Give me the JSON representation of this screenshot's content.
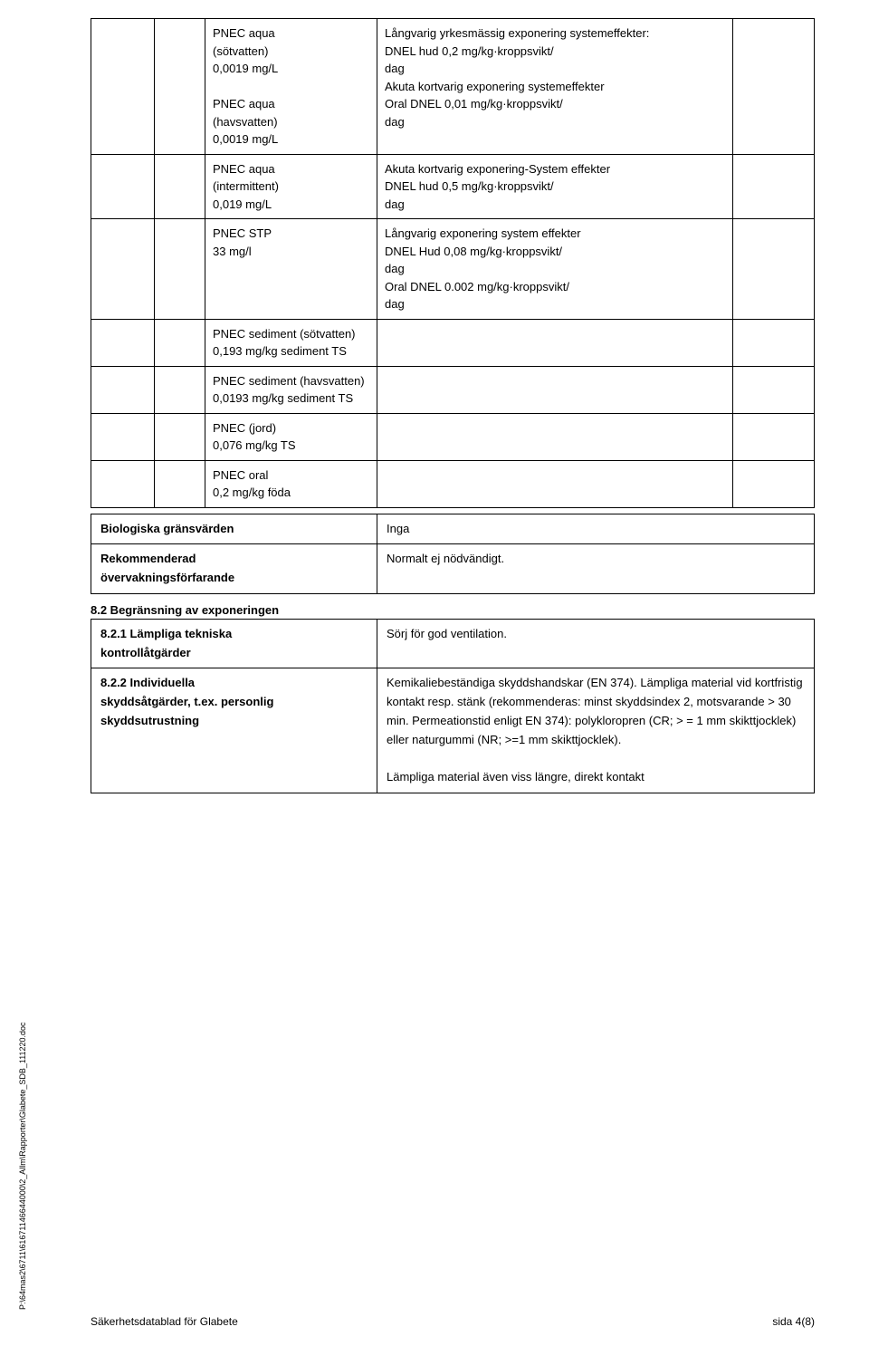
{
  "rows": [
    {
      "c": "PNEC aqua\n(sötvatten)\n0,0019 mg/L\n\nPNEC aqua\n(havsvatten)\n0,0019 mg/L",
      "d": "Långvarig yrkesmässig exponering systemeffekter:\nDNEL hud 0,2 mg/kg·kroppsvikt/\ndag\nAkuta kortvarig exponering systemeffekter\nOral DNEL 0,01 mg/kg·kroppsvikt/\ndag"
    },
    {
      "c": "PNEC aqua\n(intermittent)\n0,019 mg/L",
      "d": "Akuta kortvarig exponering-System effekter\nDNEL hud 0,5 mg/kg·kroppsvikt/\ndag"
    },
    {
      "c": "PNEC STP\n33 mg/l",
      "d": "Långvarig exponering system effekter\nDNEL Hud 0,08 mg/kg·kroppsvikt/\ndag\nOral DNEL 0.002 mg/kg·kroppsvikt/\ndag"
    },
    {
      "c": "PNEC sediment (sötvatten)\n0,193 mg/kg sediment TS",
      "d": ""
    },
    {
      "c": "PNEC sediment (havsvatten)\n0,0193 mg/kg sediment TS",
      "d": ""
    },
    {
      "c": "PNEC (jord)\n0,076 mg/kg TS",
      "d": ""
    },
    {
      "c": "PNEC oral\n0,2 mg/kg föda",
      "d": ""
    }
  ],
  "bio": {
    "l1": "Biologiska gränsvärden",
    "r1": "Inga",
    "l2a": "Rekommenderad",
    "l2b": "övervakningsförfarande",
    "r2": "Normalt ej nödvändigt."
  },
  "sec82": "8.2 Begränsning av exponeringen",
  "r821": {
    "la": "8.2.1 Lämpliga tekniska",
    "lb": "kontrollåtgärder",
    "r": "Sörj för god ventilation."
  },
  "r822": {
    "la": "8.2.2 Individuella",
    "lb": "skyddsåtgärder, t.ex. personlig",
    "lc": "skyddsutrustning",
    "r": "Kemikaliebeständiga skyddshandskar (EN 374). Lämpliga material vid kortfristig kontakt resp. stänk (rekommenderas: minst skyddsindex 2, motsvarande > 30 min. Permeationstid enligt EN 374): polykloropren (CR; > = 1 mm skikttjocklek) eller naturgummi (NR; >=1 mm skikttjocklek).",
    "r2": "Lämpliga material även viss längre, direkt kontakt"
  },
  "side": "P:\\64mas2\\6711\\61671146644000\\2_Allm\\Rapporter\\Glabete_SDB_111220.doc",
  "footer_left": "Säkerhetsdatablad för Glabete",
  "footer_right": "sida 4(8)"
}
